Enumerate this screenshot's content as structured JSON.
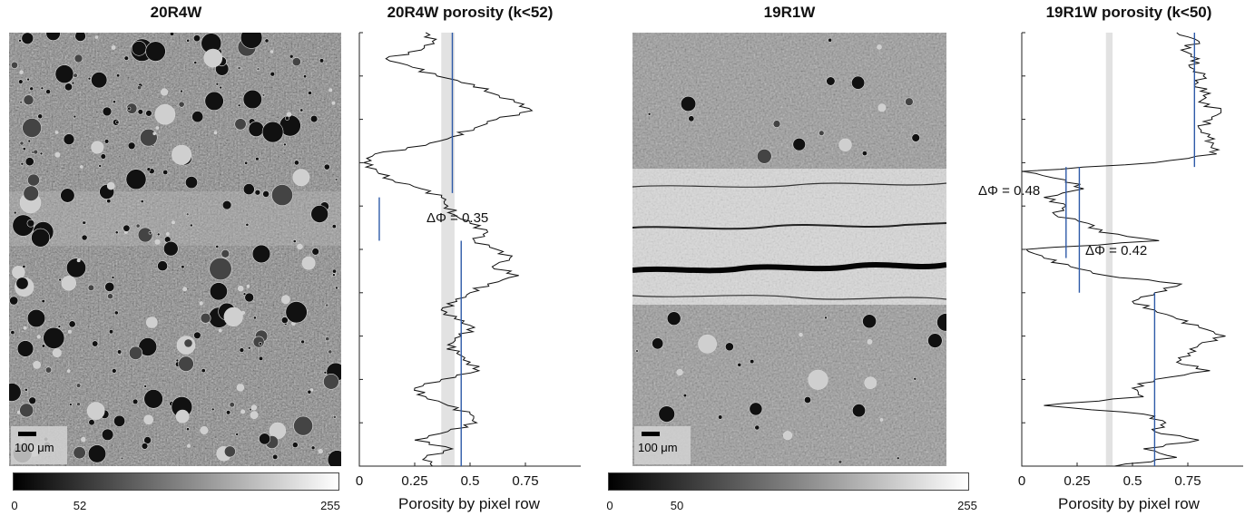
{
  "panels": [
    {
      "title": "20R4W",
      "scale_label": "100 μm",
      "colorbar_ticks": [
        "0",
        "52",
        "255"
      ]
    },
    {
      "title": "19R1W",
      "scale_label": "100 μm",
      "colorbar_ticks": [
        "0",
        "50",
        "255"
      ]
    }
  ],
  "chart_data": [
    {
      "type": "line",
      "title": "20R4W porosity (k<52)",
      "xlabel": "Porosity by pixel row",
      "ylabel": "",
      "xlim": [
        0,
        1
      ],
      "xticks": [
        "0",
        "0.25",
        "0.5",
        "0.75"
      ],
      "ylim": [
        0,
        1
      ],
      "y_axis_ticks_labeled": false,
      "shaded_band": [
        0.37,
        0.43
      ],
      "series": [
        {
          "y": [
            0.0,
            0.02,
            0.04,
            0.06,
            0.08,
            0.1,
            0.12,
            0.14,
            0.16,
            0.18,
            0.2,
            0.22,
            0.24,
            0.26,
            0.28,
            0.3,
            0.32,
            0.34,
            0.36,
            0.38,
            0.4,
            0.42,
            0.44,
            0.46,
            0.48,
            0.5,
            0.52,
            0.54,
            0.56,
            0.58,
            0.6,
            0.62,
            0.64,
            0.66,
            0.68,
            0.7,
            0.72,
            0.74,
            0.76,
            0.78,
            0.8,
            0.82,
            0.84,
            0.86,
            0.88,
            0.9,
            0.92,
            0.94,
            0.96,
            0.98,
            1.0
          ],
          "x": [
            0.3,
            0.33,
            0.28,
            0.12,
            0.24,
            0.35,
            0.52,
            0.6,
            0.7,
            0.78,
            0.62,
            0.52,
            0.42,
            0.3,
            0.07,
            0.02,
            0.08,
            0.15,
            0.28,
            0.37,
            0.4,
            0.43,
            0.5,
            0.58,
            0.52,
            0.62,
            0.68,
            0.6,
            0.72,
            0.58,
            0.5,
            0.44,
            0.37,
            0.43,
            0.52,
            0.46,
            0.4,
            0.44,
            0.5,
            0.54,
            0.37,
            0.25,
            0.3,
            0.4,
            0.5,
            0.53,
            0.4,
            0.25,
            0.42,
            0.3,
            0.33
          ]
        }
      ],
      "segments": [
        {
          "x": 0.42,
          "y_from": 0.0,
          "y_to": 0.37
        },
        {
          "x": 0.09,
          "y_from": 0.38,
          "y_to": 0.48
        },
        {
          "x": 0.46,
          "y_from": 0.48,
          "y_to": 1.0
        }
      ],
      "annotations": [
        {
          "text": "ΔΦ = 0.35"
        }
      ]
    },
    {
      "type": "line",
      "title": "19R1W porosity (k<50)",
      "xlabel": "Porosity by pixel row",
      "ylabel": "",
      "xlim": [
        0,
        1
      ],
      "xticks": [
        "0",
        "0.25",
        "0.5",
        "0.75"
      ],
      "ylim": [
        0,
        1
      ],
      "y_axis_ticks_labeled": false,
      "shaded_band": [
        0.38,
        0.41
      ],
      "series": [
        {
          "y": [
            0.0,
            0.02,
            0.04,
            0.06,
            0.08,
            0.1,
            0.12,
            0.14,
            0.16,
            0.18,
            0.2,
            0.22,
            0.24,
            0.26,
            0.28,
            0.3,
            0.32,
            0.34,
            0.36,
            0.38,
            0.4,
            0.42,
            0.44,
            0.46,
            0.48,
            0.5,
            0.52,
            0.54,
            0.56,
            0.58,
            0.6,
            0.62,
            0.64,
            0.66,
            0.68,
            0.7,
            0.72,
            0.74,
            0.76,
            0.78,
            0.8,
            0.82,
            0.84,
            0.86,
            0.88,
            0.9,
            0.92,
            0.94,
            0.96,
            0.98,
            1.0
          ],
          "x": [
            0.7,
            0.8,
            0.72,
            0.8,
            0.76,
            0.82,
            0.78,
            0.85,
            0.8,
            0.9,
            0.86,
            0.8,
            0.84,
            0.86,
            0.88,
            0.6,
            0.0,
            0.2,
            0.28,
            0.1,
            0.2,
            0.15,
            0.3,
            0.35,
            0.62,
            0.02,
            0.1,
            0.22,
            0.38,
            0.72,
            0.6,
            0.5,
            0.6,
            0.7,
            0.8,
            0.92,
            0.8,
            0.75,
            0.7,
            0.85,
            0.6,
            0.5,
            0.55,
            0.1,
            0.55,
            0.65,
            0.6,
            0.8,
            0.55,
            0.7,
            0.42
          ]
        }
      ],
      "segments": [
        {
          "x": 0.78,
          "y_from": 0.0,
          "y_to": 0.31
        },
        {
          "x": 0.2,
          "y_from": 0.31,
          "y_to": 0.52
        },
        {
          "x": 0.26,
          "y_from": 0.31,
          "y_to": 0.6
        },
        {
          "x": 0.6,
          "y_from": 0.6,
          "y_to": 1.0
        }
      ],
      "annotations": [
        {
          "text": "ΔΦ = 0.48"
        },
        {
          "text": "ΔΦ = 0.42"
        }
      ]
    }
  ]
}
